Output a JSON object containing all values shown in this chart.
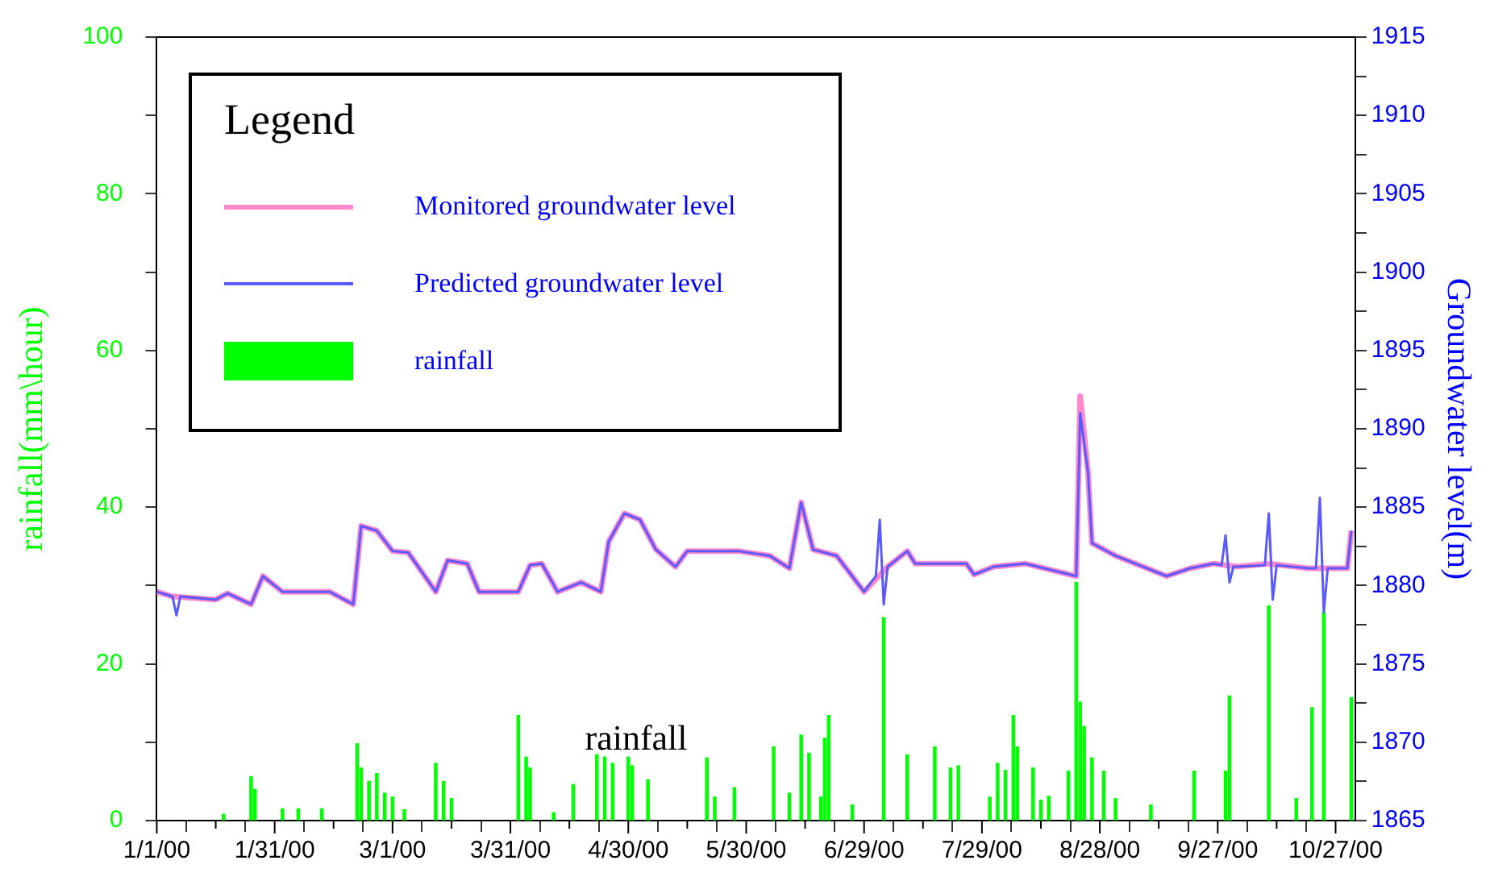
{
  "chart_data": {
    "type": "line",
    "ylabel": "rainfall(mm\\hour)",
    "y2label": "Groundwater level(m)",
    "legend_title": "Legend",
    "legend": "top left",
    "grid": false,
    "xlim": [
      "2000-01-01",
      "2000-11-01"
    ],
    "xticks": [
      {
        "value": "2000-01-01",
        "label": "1/1/00"
      },
      {
        "value": "2000-01-16",
        "label": null
      },
      {
        "value": "2000-01-31",
        "label": "1/31/00"
      },
      {
        "value": "2000-02-15",
        "label": null
      },
      {
        "value": "2000-03-01",
        "label": "3/1/00"
      },
      {
        "value": "2000-03-16",
        "label": null
      },
      {
        "value": "2000-03-31",
        "label": "3/31/00"
      },
      {
        "value": "2000-04-15",
        "label": null
      },
      {
        "value": "2000-04-30",
        "label": "4/30/00"
      },
      {
        "value": "2000-05-15",
        "label": null
      },
      {
        "value": "2000-05-30",
        "label": "5/30/00"
      },
      {
        "value": "2000-06-14",
        "label": null
      },
      {
        "value": "2000-06-29",
        "label": "6/29/00"
      },
      {
        "value": "2000-07-14",
        "label": null
      },
      {
        "value": "2000-07-29",
        "label": "7/29/00"
      },
      {
        "value": "2000-08-13",
        "label": null
      },
      {
        "value": "2000-08-28",
        "label": "8/28/00"
      },
      {
        "value": "2000-09-12",
        "label": null
      },
      {
        "value": "2000-09-27",
        "label": "9/27/00"
      },
      {
        "value": "2000-10-12",
        "label": null
      },
      {
        "value": "2000-10-27",
        "label": "10/27/00"
      }
    ],
    "ylim": [
      0,
      100
    ],
    "yticks": [
      0,
      {
        "value": 10,
        "label": null
      },
      20,
      {
        "value": 30,
        "label": null
      },
      40,
      {
        "value": 50,
        "label": null
      },
      60,
      {
        "value": 70,
        "label": null
      },
      80,
      {
        "value": 90,
        "label": null
      },
      100
    ],
    "y2lim": [
      1865,
      1915
    ],
    "y2ticks": [
      1865,
      {
        "value": 1867.5,
        "label": null
      },
      1870,
      {
        "value": 1872.5,
        "label": null
      },
      1875,
      {
        "value": 1877.5,
        "label": null
      },
      1880,
      {
        "value": 1882.5,
        "label": null
      },
      1885,
      {
        "value": 1887.5,
        "label": null
      },
      1890,
      {
        "value": 1892.5,
        "label": null
      },
      1895,
      {
        "value": 1897.5,
        "label": null
      },
      1900,
      {
        "value": 1902.5,
        "label": null
      },
      1905,
      {
        "value": 1907.5,
        "label": null
      },
      1910,
      {
        "value": 1912.5,
        "label": null
      },
      1915
    ],
    "annotations": [
      "rainfall"
    ],
    "series": [
      {
        "name": "Monitored groundwater level",
        "color": "#ff88cc",
        "axis": "y2",
        "x": [
          "2000-01-01",
          "2000-01-05",
          "2000-01-16",
          "2000-01-19",
          "2000-01-25",
          "2000-01-28",
          "2000-02-02",
          "2000-02-14",
          "2000-02-20",
          "2000-02-22",
          "2000-02-26",
          "2000-03-01",
          "2000-03-05",
          "2000-03-12",
          "2000-03-15",
          "2000-03-20",
          "2000-03-23",
          "2000-04-02",
          "2000-04-05",
          "2000-04-08",
          "2000-04-12",
          "2000-04-18",
          "2000-04-23",
          "2000-04-25",
          "2000-04-29",
          "2000-05-03",
          "2000-05-07",
          "2000-05-12",
          "2000-05-15",
          "2000-05-28",
          "2000-06-05",
          "2000-06-10",
          "2000-06-13",
          "2000-06-16",
          "2000-06-22",
          "2000-06-29",
          "2000-07-05",
          "2000-07-10",
          "2000-07-12",
          "2000-07-25",
          "2000-07-27",
          "2000-08-01",
          "2000-08-09",
          "2000-08-22",
          "2000-08-23",
          "2000-08-25",
          "2000-08-26",
          "2000-09-01",
          "2000-09-08",
          "2000-09-14",
          "2000-09-20",
          "2000-09-26",
          "2000-10-02",
          "2000-10-10",
          "2000-10-20",
          "2000-10-30",
          "2000-10-31"
        ],
        "values": [
          1879.6,
          1879.3,
          1879.1,
          1879.5,
          1878.8,
          1880.6,
          1879.6,
          1879.6,
          1878.8,
          1883.8,
          1883.5,
          1882.2,
          1882.1,
          1879.6,
          1881.6,
          1881.4,
          1879.6,
          1879.6,
          1881.3,
          1881.4,
          1879.6,
          1880.2,
          1879.6,
          1882.8,
          1884.6,
          1884.2,
          1882.3,
          1881.2,
          1882.2,
          1882.2,
          1881.9,
          1881.1,
          1885.3,
          1882.3,
          1881.9,
          1879.6,
          1881.2,
          1882.2,
          1881.4,
          1881.4,
          1880.7,
          1881.2,
          1881.4,
          1880.6,
          1892.1,
          1887.2,
          1882.7,
          1881.9,
          1881.2,
          1880.6,
          1881.1,
          1881.4,
          1881.2,
          1881.4,
          1881.1,
          1881.1,
          1883.5
        ]
      },
      {
        "name": "Predicted groundwater level",
        "color": "#5a5aff",
        "axis": "y2",
        "x": [
          "2000-01-01",
          "2000-01-05",
          "2000-01-06",
          "2000-01-07",
          "2000-01-16",
          "2000-01-19",
          "2000-01-25",
          "2000-01-28",
          "2000-02-02",
          "2000-02-14",
          "2000-02-20",
          "2000-02-22",
          "2000-02-26",
          "2000-03-01",
          "2000-03-05",
          "2000-03-12",
          "2000-03-15",
          "2000-03-20",
          "2000-03-23",
          "2000-04-02",
          "2000-04-05",
          "2000-04-08",
          "2000-04-12",
          "2000-04-18",
          "2000-04-23",
          "2000-04-25",
          "2000-04-29",
          "2000-05-03",
          "2000-05-07",
          "2000-05-12",
          "2000-05-15",
          "2000-05-28",
          "2000-06-05",
          "2000-06-10",
          "2000-06-13",
          "2000-06-16",
          "2000-06-22",
          "2000-06-29",
          "2000-07-02",
          "2000-07-03",
          "2000-07-04",
          "2000-07-05",
          "2000-07-10",
          "2000-07-12",
          "2000-07-25",
          "2000-07-27",
          "2000-08-01",
          "2000-08-09",
          "2000-08-22",
          "2000-08-23",
          "2000-08-25",
          "2000-08-26",
          "2000-09-01",
          "2000-09-08",
          "2000-09-14",
          "2000-09-20",
          "2000-09-26",
          "2000-09-28",
          "2000-09-29",
          "2000-09-30",
          "2000-10-01",
          "2000-10-02",
          "2000-10-09",
          "2000-10-10",
          "2000-10-11",
          "2000-10-12",
          "2000-10-20",
          "2000-10-22",
          "2000-10-23",
          "2000-10-24",
          "2000-10-25",
          "2000-10-30",
          "2000-10-31"
        ],
        "values": [
          1879.6,
          1879.3,
          1878.1,
          1879.3,
          1879.1,
          1879.5,
          1878.8,
          1880.6,
          1879.6,
          1879.6,
          1878.8,
          1883.8,
          1883.5,
          1882.2,
          1882.1,
          1879.6,
          1881.6,
          1881.4,
          1879.6,
          1879.6,
          1881.3,
          1881.4,
          1879.6,
          1880.2,
          1879.6,
          1882.8,
          1884.6,
          1884.2,
          1882.3,
          1881.2,
          1882.2,
          1882.2,
          1881.9,
          1881.1,
          1885.3,
          1882.3,
          1881.9,
          1879.6,
          1880.6,
          1884.2,
          1878.8,
          1881.2,
          1882.2,
          1881.4,
          1881.4,
          1880.7,
          1881.2,
          1881.4,
          1880.6,
          1891.0,
          1887.2,
          1882.7,
          1881.9,
          1881.2,
          1880.6,
          1881.1,
          1881.4,
          1881.3,
          1883.2,
          1880.2,
          1881.2,
          1881.2,
          1881.3,
          1884.6,
          1879.1,
          1881.3,
          1881.1,
          1881.1,
          1885.6,
          1878.3,
          1881.1,
          1881.1,
          1883.5
        ]
      },
      {
        "name": "rainfall",
        "type": "bar",
        "color": "#00ff00",
        "x": [
          "2000-01-18",
          "2000-01-25",
          "2000-01-26",
          "2000-02-02",
          "2000-02-06",
          "2000-02-12",
          "2000-02-21",
          "2000-02-22",
          "2000-02-24",
          "2000-02-26",
          "2000-02-28",
          "2000-03-01",
          "2000-03-04",
          "2000-03-12",
          "2000-03-14",
          "2000-03-16",
          "2000-04-02",
          "2000-04-04",
          "2000-04-05",
          "2000-04-11",
          "2000-04-16",
          "2000-04-22",
          "2000-04-24",
          "2000-04-26",
          "2000-04-30",
          "2000-05-01",
          "2000-05-05",
          "2000-05-20",
          "2000-05-22",
          "2000-05-27",
          "2000-06-06",
          "2000-06-10",
          "2000-06-13",
          "2000-06-15",
          "2000-06-18",
          "2000-06-19",
          "2000-06-20",
          "2000-06-26",
          "2000-07-04",
          "2000-07-10",
          "2000-07-17",
          "2000-07-21",
          "2000-07-23",
          "2000-07-31",
          "2000-08-02",
          "2000-08-04",
          "2000-08-06",
          "2000-08-07",
          "2000-08-11",
          "2000-08-13",
          "2000-08-15",
          "2000-08-20",
          "2000-08-22",
          "2000-08-23",
          "2000-08-24",
          "2000-08-26",
          "2000-08-29",
          "2000-09-01",
          "2000-09-10",
          "2000-09-21",
          "2000-09-29",
          "2000-09-30",
          "2000-10-10",
          "2000-10-17",
          "2000-10-21",
          "2000-10-24",
          "2000-10-31"
        ],
        "values": [
          0.8,
          5.6,
          4,
          1.5,
          1.5,
          1.5,
          9.8,
          6.7,
          5,
          6,
          3.5,
          3,
          1.4,
          7.3,
          5,
          2.8,
          13.4,
          8.1,
          6.7,
          1,
          4.6,
          8.4,
          8.1,
          7.3,
          8.1,
          7,
          5.2,
          8,
          3,
          4.2,
          9.4,
          3.5,
          10.9,
          8.6,
          3,
          10.5,
          13.4,
          2,
          25.9,
          8.4,
          9.4,
          6.7,
          7,
          3,
          7.3,
          6.4,
          13.4,
          9.4,
          6.7,
          2.6,
          3.1,
          6.3,
          30.4,
          15.1,
          12,
          8,
          6.3,
          2.8,
          2,
          6.3,
          6.3,
          15.9,
          27.4,
          2.8,
          14.4,
          26.6,
          15.7
        ]
      }
    ]
  }
}
